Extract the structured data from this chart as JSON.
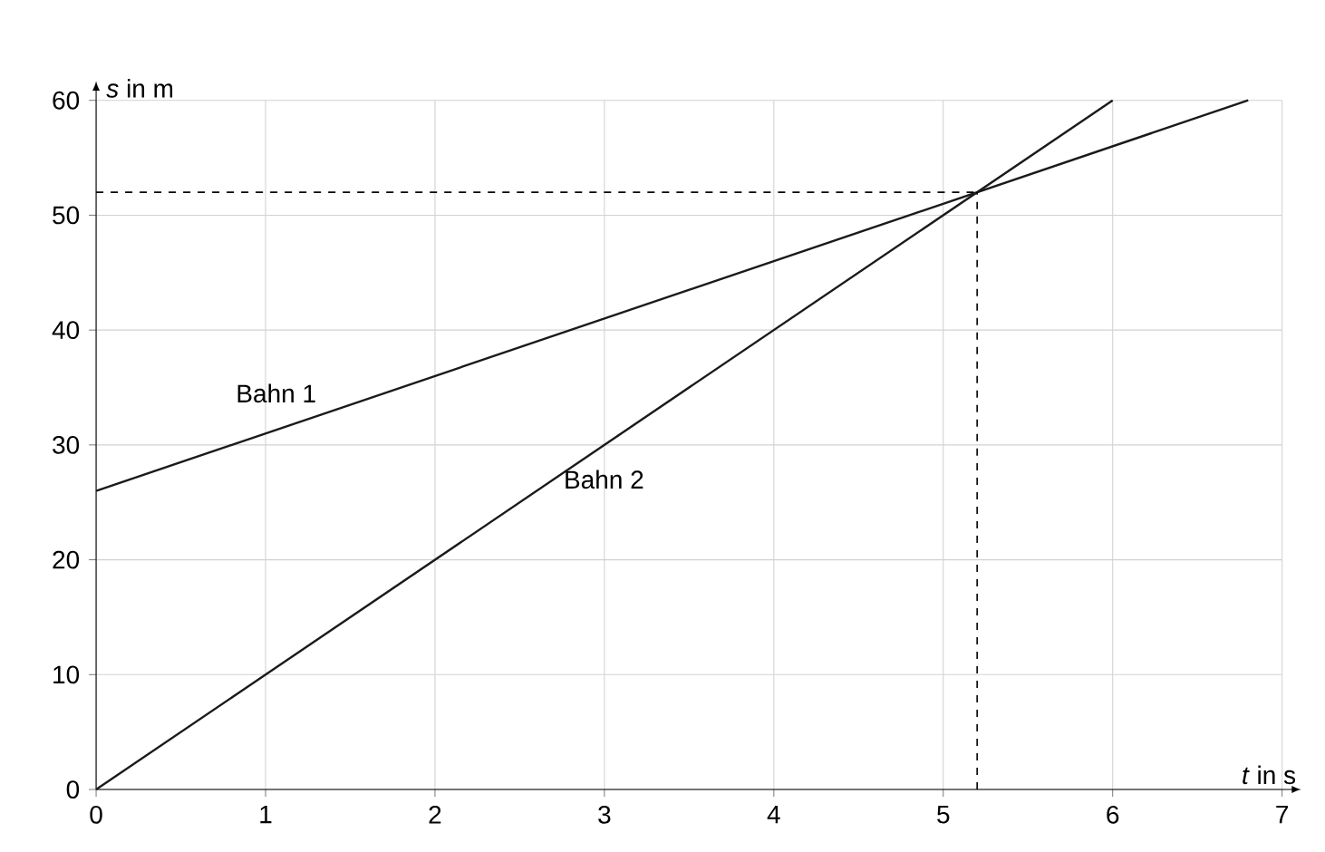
{
  "chart_data": {
    "type": "line",
    "xlabel": "*t* in s",
    "ylabel": "*s* in m",
    "series": [
      {
        "name": "Bahn 1",
        "color": "#1a1a1a",
        "x": [
          0,
          6.8
        ],
        "values": [
          26,
          60
        ]
      },
      {
        "name": "Bahn 2",
        "color": "#1a1a1a",
        "x": [
          0,
          6
        ],
        "values": [
          0,
          60
        ]
      }
    ],
    "xlim": [
      0,
      7
    ],
    "ylim": [
      0,
      60
    ],
    "xticks": [
      0,
      1,
      2,
      3,
      4,
      5,
      6,
      7
    ],
    "yticks": [
      0,
      10,
      20,
      30,
      40,
      50,
      60
    ],
    "ref_lines": [
      {
        "axis": "y",
        "value": 52,
        "line_style": "dashed"
      },
      {
        "axis": "x",
        "value": 5.2,
        "line_style": "dashed"
      }
    ],
    "grid": true,
    "legend": false,
    "marker": "none",
    "line_style": "solid"
  }
}
